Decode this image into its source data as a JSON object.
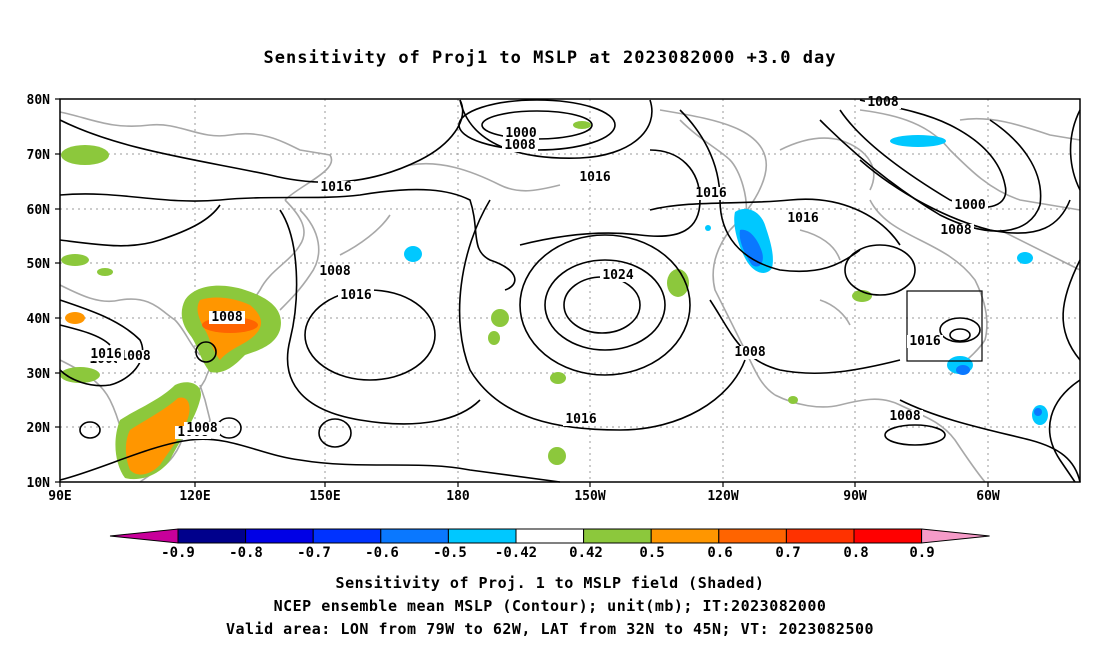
{
  "title": "Sensitivity of Proj1 to MSLP at 2023082000 +3.0 day",
  "lat_labels": [
    "80N",
    "70N",
    "60N",
    "50N",
    "40N",
    "30N",
    "20N",
    "10N"
  ],
  "lon_labels": [
    "90E",
    "120E",
    "150E",
    "180",
    "150W",
    "120W",
    "90W",
    "60W"
  ],
  "contour_labels": [
    "1000",
    "1008",
    "1008",
    "1016",
    "1016",
    "1016",
    "1016",
    "1008",
    "1016",
    "1024",
    "1008",
    "1016",
    "1008",
    "1016",
    "1008",
    "1008",
    "1000",
    "1008",
    "1016",
    "1008",
    "1016",
    "1008",
    "1008"
  ],
  "colorbar": {
    "ticks": [
      "-0.9",
      "-0.8",
      "-0.7",
      "-0.6",
      "-0.5",
      "-0.42",
      "0.42",
      "0.5",
      "0.6",
      "0.7",
      "0.8",
      "0.9"
    ],
    "colors": [
      "#c8009a",
      "#00008c",
      "#0000e6",
      "#0032ff",
      "#0a78ff",
      "#00c8ff",
      "#ffffff",
      "#8cc83c",
      "#ff9600",
      "#ff6400",
      "#ff3200",
      "#ff0000",
      "#f59bc8"
    ]
  },
  "captions": [
    "Sensitivity of Proj. 1 to MSLP field (Shaded)",
    "NCEP ensemble mean MSLP (Contour); unit(mb); IT:2023082000",
    "Valid area: LON from 79W to 62W, LAT from 32N to 45N; VT: 2023082500"
  ]
}
